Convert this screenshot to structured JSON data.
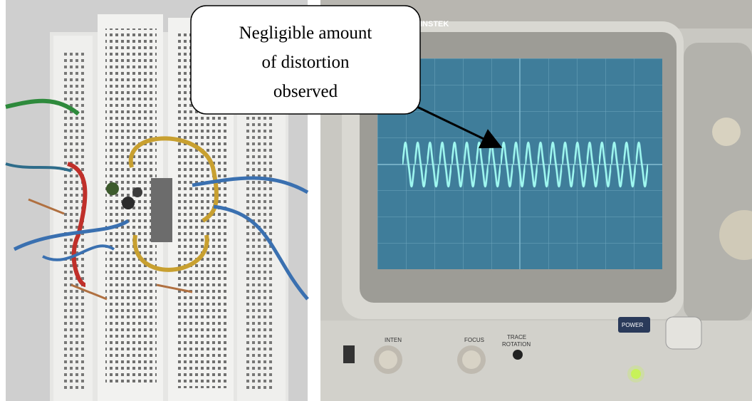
{
  "callout": {
    "lines": [
      "Negligible amount",
      "of distortion",
      "observed"
    ]
  },
  "scope_labels": {
    "brand": "INSTEK",
    "inten": "INTEN",
    "focus": "FOCUS",
    "trace": "TRACE",
    "rotation": "ROTATION",
    "power": "POWER"
  }
}
